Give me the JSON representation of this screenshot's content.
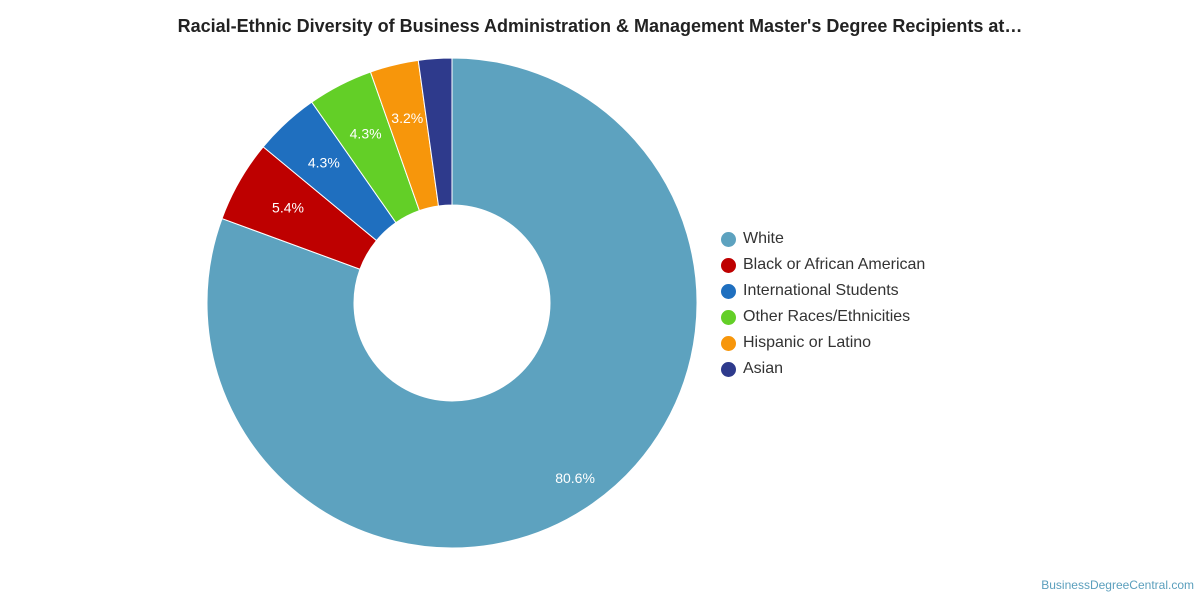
{
  "title": "Racial-Ethnic Diversity of Business Administration & Management Master's Degree Recipients at…",
  "credit": "BusinessDegreeCentral.com",
  "chart_data": {
    "type": "pie",
    "variant": "donut",
    "title": "Racial-Ethnic Diversity of Business Administration & Management Master's Degree Recipients at…",
    "legend_position": "right",
    "slices": [
      {
        "name": "White",
        "value": 80.6,
        "label": "80.6%",
        "color": "#5da2bf"
      },
      {
        "name": "Black or African American",
        "value": 5.4,
        "label": "5.4%",
        "color": "#be0000"
      },
      {
        "name": "International Students",
        "value": 4.3,
        "label": "4.3%",
        "color": "#1f6fbf"
      },
      {
        "name": "Other Races/Ethnicities",
        "value": 4.3,
        "label": "4.3%",
        "color": "#63cf27"
      },
      {
        "name": "Hispanic or Latino",
        "value": 3.2,
        "label": "3.2%",
        "color": "#f7960b"
      },
      {
        "name": "Asian",
        "value": 2.2,
        "label": "",
        "color": "#2e3a8c"
      }
    ]
  }
}
